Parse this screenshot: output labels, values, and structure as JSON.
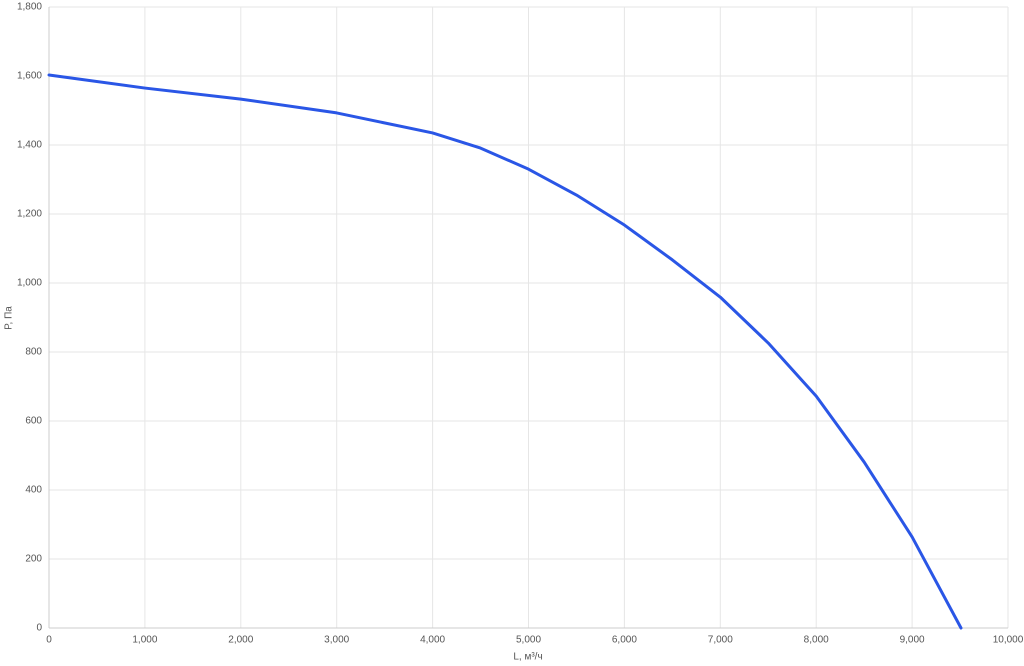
{
  "chart_data": {
    "type": "line",
    "x_label": "L, м³/ч",
    "y_label": "P, Па",
    "x": [
      0,
      1000,
      2000,
      3000,
      4000,
      4500,
      5000,
      5500,
      6000,
      6500,
      7000,
      7500,
      8000,
      8500,
      9000,
      9510
    ],
    "series": [
      {
        "name": "P",
        "color": "#2a56e6",
        "values": [
          1603,
          1565,
          1533,
          1493,
          1435,
          1391,
          1330,
          1255,
          1168,
          1067,
          959,
          826,
          672,
          481,
          264,
          0
        ]
      }
    ],
    "xlim": [
      0,
      10000
    ],
    "xticks": [
      0,
      {
        "value": 1000,
        "label": "1,000"
      },
      {
        "value": 2000,
        "label": "2,000"
      },
      {
        "value": 3000,
        "label": "3,000"
      },
      {
        "value": 4000,
        "label": "4,000"
      },
      {
        "value": 5000,
        "label": "5,000"
      },
      {
        "value": 6000,
        "label": "6,000"
      },
      {
        "value": 7000,
        "label": "7,000"
      },
      {
        "value": 8000,
        "label": "8,000"
      },
      {
        "value": 9000,
        "label": "9,000"
      },
      {
        "value": 10000,
        "label": "10,000"
      }
    ],
    "ylim": [
      0,
      1800
    ],
    "yticks": [
      0,
      200,
      400,
      600,
      800,
      {
        "value": 1000,
        "label": "1,000"
      },
      {
        "value": 1200,
        "label": "1,200"
      },
      {
        "value": 1400,
        "label": "1,400"
      },
      {
        "value": 1600,
        "label": "1,600"
      },
      {
        "value": 1800,
        "label": "1,800"
      }
    ],
    "grid": true
  }
}
